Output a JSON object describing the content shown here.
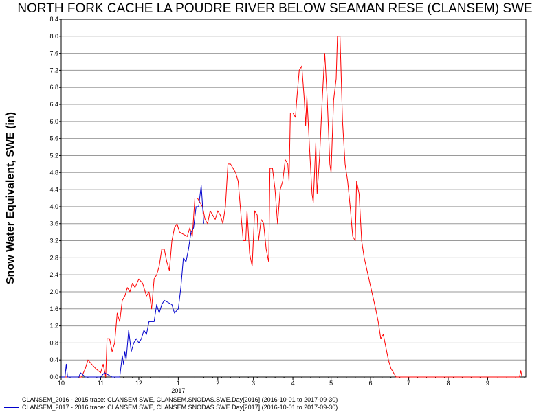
{
  "chart_data": {
    "type": "line",
    "title": "NORTH FORK CACHE LA POUDRE RIVER BELOW SEAMAN RESE (CLANSEM) SWE",
    "ylabel": "Snow Water Equivalent, SWE (in)",
    "xlabel": "",
    "year_label": "2017",
    "ylim": [
      0,
      8.4
    ],
    "xlim": [
      "2016-10-01",
      "2017-09-30"
    ],
    "grid": true,
    "legend_position": "bottom-left",
    "yticks": [
      "0.0",
      "0.4",
      "0.8",
      "1.2",
      "1.6",
      "2.0",
      "2.4",
      "2.8",
      "3.2",
      "3.6",
      "4.0",
      "4.4",
      "4.8",
      "5.2",
      "5.6",
      "6.0",
      "6.4",
      "6.8",
      "7.2",
      "7.6",
      "8.0",
      "8.4"
    ],
    "xticks": [
      {
        "label": "10",
        "date": "2016-10-01"
      },
      {
        "label": "11",
        "date": "2016-11-01"
      },
      {
        "label": "12",
        "date": "2016-12-01"
      },
      {
        "label": "1",
        "date": "2017-01-01"
      },
      {
        "label": "2",
        "date": "2017-02-01"
      },
      {
        "label": "3",
        "date": "2017-03-01"
      },
      {
        "label": "4",
        "date": "2017-04-01"
      },
      {
        "label": "5",
        "date": "2017-05-01"
      },
      {
        "label": "6",
        "date": "2017-06-01"
      },
      {
        "label": "7",
        "date": "2017-07-01"
      },
      {
        "label": "8",
        "date": "2017-08-01"
      },
      {
        "label": "9",
        "date": "2017-09-01"
      }
    ],
    "series": [
      {
        "name": "CLANSEM_2016 - 2015 trace: CLANSEM SWE, CLANSEM.SNODAS.SWE.Day[2016] (2016-10-01 to 2017-09-30)",
        "color": "#ff0000",
        "points": [
          [
            "2016-10-01",
            0.0
          ],
          [
            "2016-10-17",
            0.0
          ],
          [
            "2016-10-20",
            0.2
          ],
          [
            "2016-10-22",
            0.4
          ],
          [
            "2016-10-25",
            0.3
          ],
          [
            "2016-10-28",
            0.2
          ],
          [
            "2016-11-01",
            0.1
          ],
          [
            "2016-11-03",
            0.3
          ],
          [
            "2016-11-05",
            0.0
          ],
          [
            "2016-11-06",
            0.9
          ],
          [
            "2016-11-08",
            0.9
          ],
          [
            "2016-11-10",
            0.6
          ],
          [
            "2016-11-12",
            0.8
          ],
          [
            "2016-11-14",
            1.5
          ],
          [
            "2016-11-16",
            1.3
          ],
          [
            "2016-11-18",
            1.8
          ],
          [
            "2016-11-20",
            1.9
          ],
          [
            "2016-11-22",
            2.1
          ],
          [
            "2016-11-24",
            2.0
          ],
          [
            "2016-11-26",
            2.2
          ],
          [
            "2016-11-28",
            2.1
          ],
          [
            "2016-12-01",
            2.3
          ],
          [
            "2016-12-04",
            2.2
          ],
          [
            "2016-12-07",
            1.9
          ],
          [
            "2016-12-09",
            2.0
          ],
          [
            "2016-12-11",
            1.6
          ],
          [
            "2016-12-13",
            2.3
          ],
          [
            "2016-12-15",
            2.4
          ],
          [
            "2016-12-17",
            2.6
          ],
          [
            "2016-12-19",
            3.0
          ],
          [
            "2016-12-21",
            3.0
          ],
          [
            "2016-12-23",
            2.7
          ],
          [
            "2016-12-25",
            2.5
          ],
          [
            "2016-12-27",
            3.2
          ],
          [
            "2016-12-29",
            3.5
          ],
          [
            "2016-12-31",
            3.6
          ],
          [
            "2017-01-02",
            3.4
          ],
          [
            "2017-01-05",
            3.35
          ],
          [
            "2017-01-08",
            3.3
          ],
          [
            "2017-01-10",
            3.5
          ],
          [
            "2017-01-12",
            3.3
          ],
          [
            "2017-01-14",
            4.2
          ],
          [
            "2017-01-16",
            4.2
          ],
          [
            "2017-01-18",
            4.1
          ],
          [
            "2017-01-20",
            4.0
          ],
          [
            "2017-01-22",
            3.7
          ],
          [
            "2017-01-24",
            3.6
          ],
          [
            "2017-01-26",
            3.9
          ],
          [
            "2017-01-28",
            3.8
          ],
          [
            "2017-01-30",
            3.7
          ],
          [
            "2017-02-01",
            3.9
          ],
          [
            "2017-02-03",
            3.8
          ],
          [
            "2017-02-05",
            3.6
          ],
          [
            "2017-02-07",
            4.0
          ],
          [
            "2017-02-09",
            5.0
          ],
          [
            "2017-02-11",
            5.0
          ],
          [
            "2017-02-13",
            4.9
          ],
          [
            "2017-02-15",
            4.8
          ],
          [
            "2017-02-17",
            4.6
          ],
          [
            "2017-02-19",
            3.9
          ],
          [
            "2017-02-21",
            3.2
          ],
          [
            "2017-02-23",
            3.2
          ],
          [
            "2017-02-24",
            3.9
          ],
          [
            "2017-02-26",
            2.9
          ],
          [
            "2017-02-28",
            2.6
          ],
          [
            "2017-03-02",
            3.9
          ],
          [
            "2017-03-04",
            3.8
          ],
          [
            "2017-03-05",
            3.2
          ],
          [
            "2017-03-07",
            3.7
          ],
          [
            "2017-03-09",
            3.6
          ],
          [
            "2017-03-11",
            3.0
          ],
          [
            "2017-03-13",
            2.7
          ],
          [
            "2017-03-14",
            4.9
          ],
          [
            "2017-03-16",
            4.9
          ],
          [
            "2017-03-18",
            4.4
          ],
          [
            "2017-03-20",
            3.6
          ],
          [
            "2017-03-22",
            4.4
          ],
          [
            "2017-03-24",
            4.6
          ],
          [
            "2017-03-26",
            5.1
          ],
          [
            "2017-03-28",
            5.0
          ],
          [
            "2017-03-29",
            4.6
          ],
          [
            "2017-03-30",
            6.2
          ],
          [
            "2017-04-01",
            6.2
          ],
          [
            "2017-04-03",
            6.1
          ],
          [
            "2017-04-04",
            6.5
          ],
          [
            "2017-04-06",
            7.2
          ],
          [
            "2017-04-08",
            7.3
          ],
          [
            "2017-04-10",
            6.5
          ],
          [
            "2017-04-11",
            5.9
          ],
          [
            "2017-04-12",
            6.6
          ],
          [
            "2017-04-14",
            5.4
          ],
          [
            "2017-04-16",
            4.3
          ],
          [
            "2017-04-17",
            4.1
          ],
          [
            "2017-04-19",
            5.5
          ],
          [
            "2017-04-20",
            4.3
          ],
          [
            "2017-04-22",
            5.2
          ],
          [
            "2017-04-24",
            6.5
          ],
          [
            "2017-04-26",
            7.6
          ],
          [
            "2017-04-28",
            6.5
          ],
          [
            "2017-04-30",
            5.0
          ],
          [
            "2017-05-01",
            4.8
          ],
          [
            "2017-05-03",
            6.5
          ],
          [
            "2017-05-05",
            7.0
          ],
          [
            "2017-05-06",
            8.0
          ],
          [
            "2017-05-08",
            8.0
          ],
          [
            "2017-05-10",
            6.0
          ],
          [
            "2017-05-12",
            5.0
          ],
          [
            "2017-05-14",
            4.6
          ],
          [
            "2017-05-16",
            4.0
          ],
          [
            "2017-05-18",
            3.3
          ],
          [
            "2017-05-20",
            3.2
          ],
          [
            "2017-05-21",
            4.6
          ],
          [
            "2017-05-23",
            4.3
          ],
          [
            "2017-05-25",
            3.2
          ],
          [
            "2017-05-27",
            2.8
          ],
          [
            "2017-05-30",
            2.4
          ],
          [
            "2017-06-02",
            2.0
          ],
          [
            "2017-06-05",
            1.6
          ],
          [
            "2017-06-07",
            1.3
          ],
          [
            "2017-06-09",
            0.9
          ],
          [
            "2017-06-11",
            1.0
          ],
          [
            "2017-06-13",
            0.7
          ],
          [
            "2017-06-15",
            0.4
          ],
          [
            "2017-06-17",
            0.2
          ],
          [
            "2017-06-19",
            0.1
          ],
          [
            "2017-06-21",
            0.0
          ],
          [
            "2017-09-26",
            0.0
          ],
          [
            "2017-09-27",
            0.15
          ],
          [
            "2017-09-28",
            0.0
          ]
        ]
      },
      {
        "name": "CLANSEM_2017 - 2016 trace: CLANSEM SWE, CLANSEM.SNODAS.SWE.Day[2017] (2016-10-01 to 2017-09-30)",
        "color": "#0000cc",
        "points": [
          [
            "2016-10-01",
            0.0
          ],
          [
            "2016-10-04",
            0.0
          ],
          [
            "2016-10-05",
            0.3
          ],
          [
            "2016-10-06",
            0.0
          ],
          [
            "2016-10-15",
            0.0
          ],
          [
            "2016-10-16",
            0.1
          ],
          [
            "2016-10-18",
            0.05
          ],
          [
            "2016-10-20",
            0.0
          ],
          [
            "2016-11-01",
            0.0
          ],
          [
            "2016-11-04",
            0.1
          ],
          [
            "2016-11-07",
            0.05
          ],
          [
            "2016-11-10",
            0.0
          ],
          [
            "2016-11-16",
            0.0
          ],
          [
            "2016-11-18",
            0.5
          ],
          [
            "2016-11-19",
            0.3
          ],
          [
            "2016-11-20",
            0.6
          ],
          [
            "2016-11-21",
            0.4
          ],
          [
            "2016-11-23",
            1.1
          ],
          [
            "2016-11-25",
            0.6
          ],
          [
            "2016-11-27",
            0.8
          ],
          [
            "2016-11-29",
            0.9
          ],
          [
            "2016-12-01",
            0.8
          ],
          [
            "2016-12-03",
            0.9
          ],
          [
            "2016-12-05",
            1.1
          ],
          [
            "2016-12-07",
            1.0
          ],
          [
            "2016-12-09",
            1.3
          ],
          [
            "2016-12-11",
            1.3
          ],
          [
            "2016-12-13",
            1.3
          ],
          [
            "2016-12-15",
            1.7
          ],
          [
            "2016-12-17",
            1.5
          ],
          [
            "2016-12-19",
            1.7
          ],
          [
            "2016-12-21",
            1.8
          ],
          [
            "2016-12-24",
            1.75
          ],
          [
            "2016-12-27",
            1.7
          ],
          [
            "2016-12-29",
            1.5
          ],
          [
            "2017-01-01",
            1.6
          ],
          [
            "2017-01-03",
            2.1
          ],
          [
            "2017-01-05",
            2.8
          ],
          [
            "2017-01-07",
            2.7
          ],
          [
            "2017-01-09",
            3.0
          ],
          [
            "2017-01-11",
            3.4
          ],
          [
            "2017-01-13",
            3.5
          ],
          [
            "2017-01-15",
            4.0
          ],
          [
            "2017-01-17",
            4.0
          ],
          [
            "2017-01-19",
            4.5
          ],
          [
            "2017-01-21",
            3.6
          ]
        ]
      }
    ]
  }
}
